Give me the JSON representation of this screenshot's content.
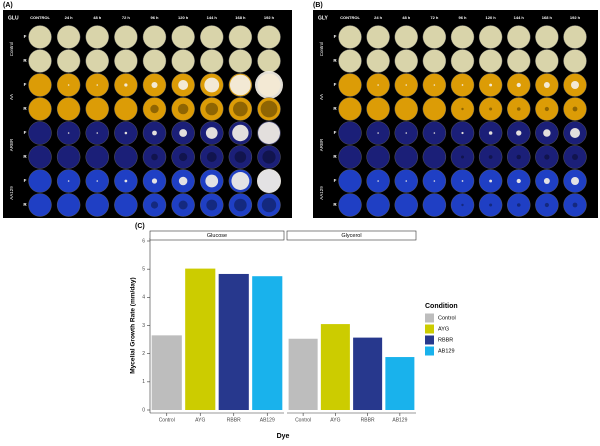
{
  "panels": [
    {
      "label": "(A)",
      "corner": "GLU",
      "columns": [
        "CONTROL",
        "24 h",
        "48 h",
        "72 h",
        "96 h",
        "120 h",
        "144 h",
        "168 h",
        "192 h"
      ],
      "row_groups": [
        "Control",
        "AA",
        "ARBR",
        "AA129"
      ],
      "row_sides": [
        "F",
        "R"
      ]
    },
    {
      "label": "(B)",
      "corner": "GLY",
      "columns": [
        "CONTROL",
        "24 h",
        "48 h",
        "72 h",
        "96 h",
        "120 h",
        "144 h",
        "168 h",
        "192 h"
      ],
      "row_groups": [
        "Control",
        "AA",
        "ARBR",
        "AA129"
      ],
      "row_sides": [
        "F",
        "R"
      ]
    }
  ],
  "chart_data": {
    "type": "bar",
    "label": "(C)",
    "categories": [
      "Control",
      "AYG",
      "RBBR",
      "AB129"
    ],
    "colors": [
      "#bdbdbd",
      "#cccc00",
      "#27388d",
      "#19b2ec"
    ],
    "facets": [
      {
        "name": "Glucose",
        "values": [
          2.65,
          5.02,
          4.83,
          4.75
        ]
      },
      {
        "name": "Glycerol",
        "values": [
          2.53,
          3.05,
          2.57,
          1.88
        ]
      }
    ],
    "ylim": [
      0,
      6
    ],
    "yticks": [
      0,
      1,
      2,
      3,
      4,
      5,
      6
    ],
    "xlabel": "Dye",
    "ylabel": "Mycelial Growth Rate (mm/day)",
    "legend_title": "Condition"
  }
}
